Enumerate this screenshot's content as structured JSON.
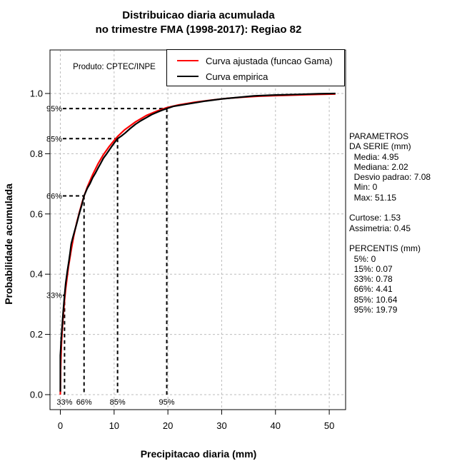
{
  "title": {
    "line1": "Distribuicao diaria acumulada",
    "line2": "no trimestre FMA (1998-2017): Regiao 82"
  },
  "watermark": "Produto: CPTEC/INPE",
  "legend": {
    "items": [
      {
        "label": "Curva ajustada (funcao Gama)",
        "color": "#FF0000"
      },
      {
        "label": "Curva empirica",
        "color": "#000000"
      }
    ]
  },
  "axes": {
    "x": {
      "label": "Precipitacao diaria (mm)",
      "ticks": [
        0,
        10,
        20,
        30,
        40,
        50
      ]
    },
    "y": {
      "label": "Probabilidade acumulada",
      "ticks": [
        [
          0,
          "0.0"
        ],
        [
          0.2,
          "0.2"
        ],
        [
          0.4,
          "0.4"
        ],
        [
          0.6,
          "0.6"
        ],
        [
          0.8,
          "0.8"
        ],
        [
          1,
          "1.0"
        ]
      ]
    }
  },
  "side_panel": {
    "lines": [
      "PARAMETROS",
      "DA SERIE (mm)",
      "  Media: 4.95",
      "  Mediana: 2.02",
      "  Desvio padrao: 7.08",
      "  Min: 0",
      "  Max: 51.15",
      "",
      "Curtose: 1.53",
      "Assimetria: 0.45",
      "",
      "PERCENTIS (mm)",
      "  5%: 0",
      "  15%: 0.07",
      "  33%: 0.78",
      "  66%: 4.41",
      "  85%: 10.64",
      "  95%: 19.79"
    ]
  },
  "chart_data": {
    "type": "line",
    "title": "Distribuicao diaria acumulada no trimestre FMA (1998-2017): Regiao 82",
    "xlabel": "Precipitacao diaria (mm)",
    "ylabel": "Probabilidade acumulada",
    "xlim": [
      0,
      51.15
    ],
    "ylim": [
      0,
      1
    ],
    "grid": "dashed-lightgray",
    "legend_position": "top",
    "stats": {
      "media": 4.95,
      "mediana": 2.02,
      "desvio_padrao": 7.08,
      "min": 0,
      "max": 51.15,
      "curtose": 1.53,
      "assimetria": 0.45
    },
    "percentis": [
      [
        "5%",
        0
      ],
      [
        "15%",
        0.07
      ],
      [
        "33%",
        0.78
      ],
      [
        "66%",
        4.41
      ],
      [
        "85%",
        10.64
      ],
      [
        "95%",
        19.79
      ]
    ],
    "percentile_guides": [
      {
        "label": "33%",
        "x_mm": 0.78,
        "p": 0.33
      },
      {
        "label": "66%",
        "x_mm": 4.41,
        "p": 0.66
      },
      {
        "label": "85%",
        "x_mm": 10.64,
        "p": 0.85
      },
      {
        "label": "95%",
        "x_mm": 19.79,
        "p": 0.95
      }
    ],
    "series": [
      {
        "name": "Curva ajustada (funcao Gama)",
        "color": "#FF0000",
        "points": [
          [
            0,
            0
          ],
          [
            0.05,
            0.084
          ],
          [
            0.1,
            0.118
          ],
          [
            0.2,
            0.164
          ],
          [
            0.3,
            0.2
          ],
          [
            0.5,
            0.255
          ],
          [
            0.78,
            0.314
          ],
          [
            1,
            0.352
          ],
          [
            1.5,
            0.423
          ],
          [
            2,
            0.479
          ],
          [
            2.5,
            0.527
          ],
          [
            3,
            0.568
          ],
          [
            3.5,
            0.603
          ],
          [
            4,
            0.635
          ],
          [
            4.41,
            0.659
          ],
          [
            5,
            0.689
          ],
          [
            6,
            0.73
          ],
          [
            7,
            0.766
          ],
          [
            8,
            0.797
          ],
          [
            9,
            0.822
          ],
          [
            10,
            0.844
          ],
          [
            10.64,
            0.857
          ],
          [
            12,
            0.88
          ],
          [
            14,
            0.906
          ],
          [
            16,
            0.927
          ],
          [
            18,
            0.942
          ],
          [
            19.79,
            0.953
          ],
          [
            22,
            0.962
          ],
          [
            25,
            0.971
          ],
          [
            28,
            0.978
          ],
          [
            31,
            0.984
          ],
          [
            34,
            0.988
          ],
          [
            37,
            0.991
          ],
          [
            40,
            0.993
          ],
          [
            44,
            0.995
          ],
          [
            48,
            0.997
          ],
          [
            51.15,
            0.998
          ]
        ]
      },
      {
        "name": "Curva empirica",
        "color": "#000000",
        "points": [
          [
            0,
            0.01
          ],
          [
            0,
            0.13
          ],
          [
            0.07,
            0.15
          ],
          [
            0.15,
            0.18
          ],
          [
            0.3,
            0.22
          ],
          [
            0.5,
            0.27
          ],
          [
            0.78,
            0.33
          ],
          [
            1,
            0.37
          ],
          [
            1.3,
            0.41
          ],
          [
            1.6,
            0.445
          ],
          [
            1.8,
            0.47
          ],
          [
            2.02,
            0.5
          ],
          [
            2.3,
            0.52
          ],
          [
            2.6,
            0.54
          ],
          [
            3,
            0.565
          ],
          [
            3.5,
            0.6
          ],
          [
            4,
            0.63
          ],
          [
            4.41,
            0.66
          ],
          [
            5,
            0.685
          ],
          [
            5.5,
            0.7
          ],
          [
            6,
            0.72
          ],
          [
            6.5,
            0.735
          ],
          [
            7,
            0.752
          ],
          [
            7.5,
            0.768
          ],
          [
            8,
            0.785
          ],
          [
            8.5,
            0.797
          ],
          [
            9,
            0.81
          ],
          [
            9.5,
            0.823
          ],
          [
            10,
            0.835
          ],
          [
            10.64,
            0.85
          ],
          [
            11.3,
            0.858
          ],
          [
            12,
            0.868
          ],
          [
            13,
            0.884
          ],
          [
            14,
            0.898
          ],
          [
            15,
            0.91
          ],
          [
            16,
            0.92
          ],
          [
            17,
            0.93
          ],
          [
            18,
            0.938
          ],
          [
            19,
            0.945
          ],
          [
            19.79,
            0.95
          ],
          [
            21,
            0.957
          ],
          [
            23,
            0.963
          ],
          [
            25,
            0.969
          ],
          [
            27,
            0.975
          ],
          [
            30,
            0.982
          ],
          [
            33,
            0.987
          ],
          [
            36,
            0.992
          ],
          [
            40,
            0.995
          ],
          [
            44,
            0.997
          ],
          [
            48,
            0.999
          ],
          [
            51.15,
            1
          ]
        ]
      }
    ]
  }
}
